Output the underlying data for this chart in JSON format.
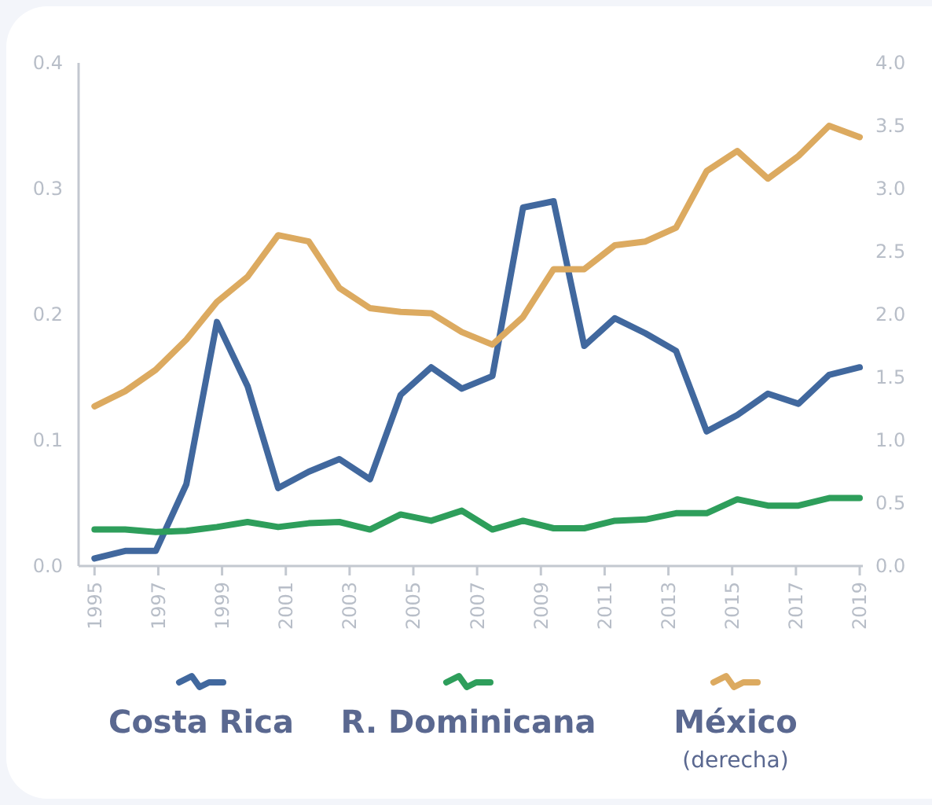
{
  "chart_data": {
    "type": "line",
    "x": [
      1995,
      1995.96,
      1996.92,
      1997.88,
      1998.84,
      1999.8,
      2000.76,
      2001.72,
      2002.68,
      2003.64,
      2004.6,
      2005.56,
      2006.52,
      2007.48,
      2008.44,
      2009.4,
      2010.36,
      2011.32,
      2012.28,
      2013.24,
      2014.2,
      2015.16,
      2016.12,
      2017.08,
      2018.04,
      2019
    ],
    "series": [
      {
        "name": "Costa Rica",
        "color": "#41689e",
        "values": [
          0.006,
          0.012,
          0.012,
          0.065,
          0.194,
          0.143,
          0.062,
          0.075,
          0.085,
          0.069,
          0.136,
          0.158,
          0.141,
          0.151,
          0.285,
          0.29,
          0.175,
          0.197,
          0.185,
          0.171,
          0.107,
          0.12,
          0.137,
          0.129,
          0.152,
          0.158
        ]
      },
      {
        "name": "R. Dominicana",
        "color": "#2e9e5b",
        "values": [
          0.029,
          0.029,
          0.027,
          0.028,
          0.031,
          0.035,
          0.031,
          0.034,
          0.035,
          0.029,
          0.041,
          0.036,
          0.044,
          0.029,
          0.036,
          0.03,
          0.03,
          0.036,
          0.037,
          0.042,
          0.042,
          0.053,
          0.048,
          0.048,
          0.054,
          0.054
        ]
      },
      {
        "name": "México (derecha)",
        "color": "#dcaa60",
        "axis": "y2",
        "values": [
          1.27,
          1.39,
          1.56,
          1.8,
          2.1,
          2.3,
          2.63,
          2.58,
          2.21,
          2.05,
          2.02,
          2.01,
          1.86,
          1.76,
          1.98,
          2.36,
          2.36,
          2.55,
          2.58,
          2.69,
          3.14,
          3.3,
          3.08,
          3.26,
          3.5,
          3.41
        ]
      }
    ],
    "xlim": [
      1994.5,
      2019
    ],
    "xticks": [
      1995,
      1997,
      1999,
      2001,
      2003,
      2005,
      2007,
      2009,
      2011,
      2013,
      2015,
      2017,
      2019
    ],
    "ylim": [
      0,
      0.4
    ],
    "yticks": [
      {
        "value": 0,
        "label": "0.0"
      },
      {
        "value": 0.1,
        "label": "0.1"
      },
      {
        "value": 0.2,
        "label": "0.2"
      },
      {
        "value": 0.3,
        "label": "0.3"
      },
      {
        "value": 0.4,
        "label": "0.4"
      }
    ],
    "y2lim": [
      0,
      4
    ],
    "y2ticks": [
      {
        "value": 0,
        "label": "0.0"
      },
      {
        "value": 0.5,
        "label": "0.5"
      },
      {
        "value": 1,
        "label": "1.0"
      },
      {
        "value": 1.5,
        "label": "1.5"
      },
      {
        "value": 2,
        "label": "2.0"
      },
      {
        "value": 2.5,
        "label": "2.5"
      },
      {
        "value": 3,
        "label": "3.0"
      },
      {
        "value": 3.5,
        "label": "3.5"
      },
      {
        "value": 4,
        "label": "4.0"
      }
    ],
    "legend": "bottom",
    "marker": "none",
    "line_style": "solid"
  }
}
